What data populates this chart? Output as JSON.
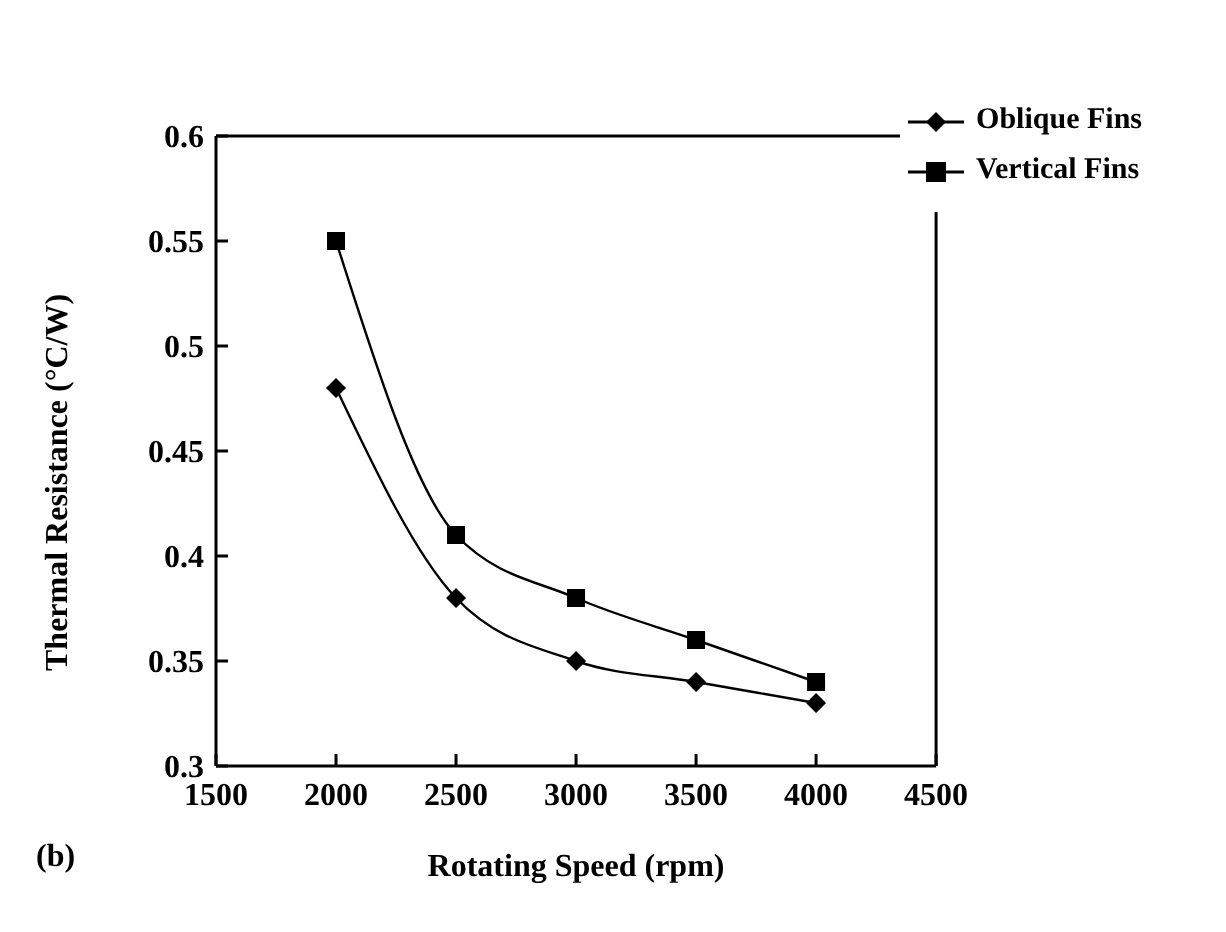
{
  "chart_data": {
    "type": "line",
    "xlabel": "Rotating Speed (rpm)",
    "ylabel": "Thermal Resistance (°C/W)",
    "annotations": [
      "(b)"
    ],
    "x": [
      2000,
      2500,
      3000,
      3500,
      4000
    ],
    "series": [
      {
        "name": "Oblique Fins",
        "color": "#000000",
        "marker": "diamond",
        "values": [
          0.48,
          0.38,
          0.35,
          0.34,
          0.33
        ]
      },
      {
        "name": "Vertical Fins",
        "color": "#000000",
        "marker": "square",
        "values": [
          0.55,
          0.41,
          0.38,
          0.36,
          0.34
        ]
      }
    ],
    "xlim": [
      1500,
      4500
    ],
    "xticks": [
      1500,
      2000,
      2500,
      3000,
      3500,
      4000,
      4500
    ],
    "ylim": [
      0.3,
      0.6
    ],
    "yticks": [
      0.3,
      0.35,
      0.4,
      0.45,
      0.5,
      0.55,
      0.6
    ],
    "grid": false,
    "legend": "top right",
    "line_style": "solid"
  }
}
